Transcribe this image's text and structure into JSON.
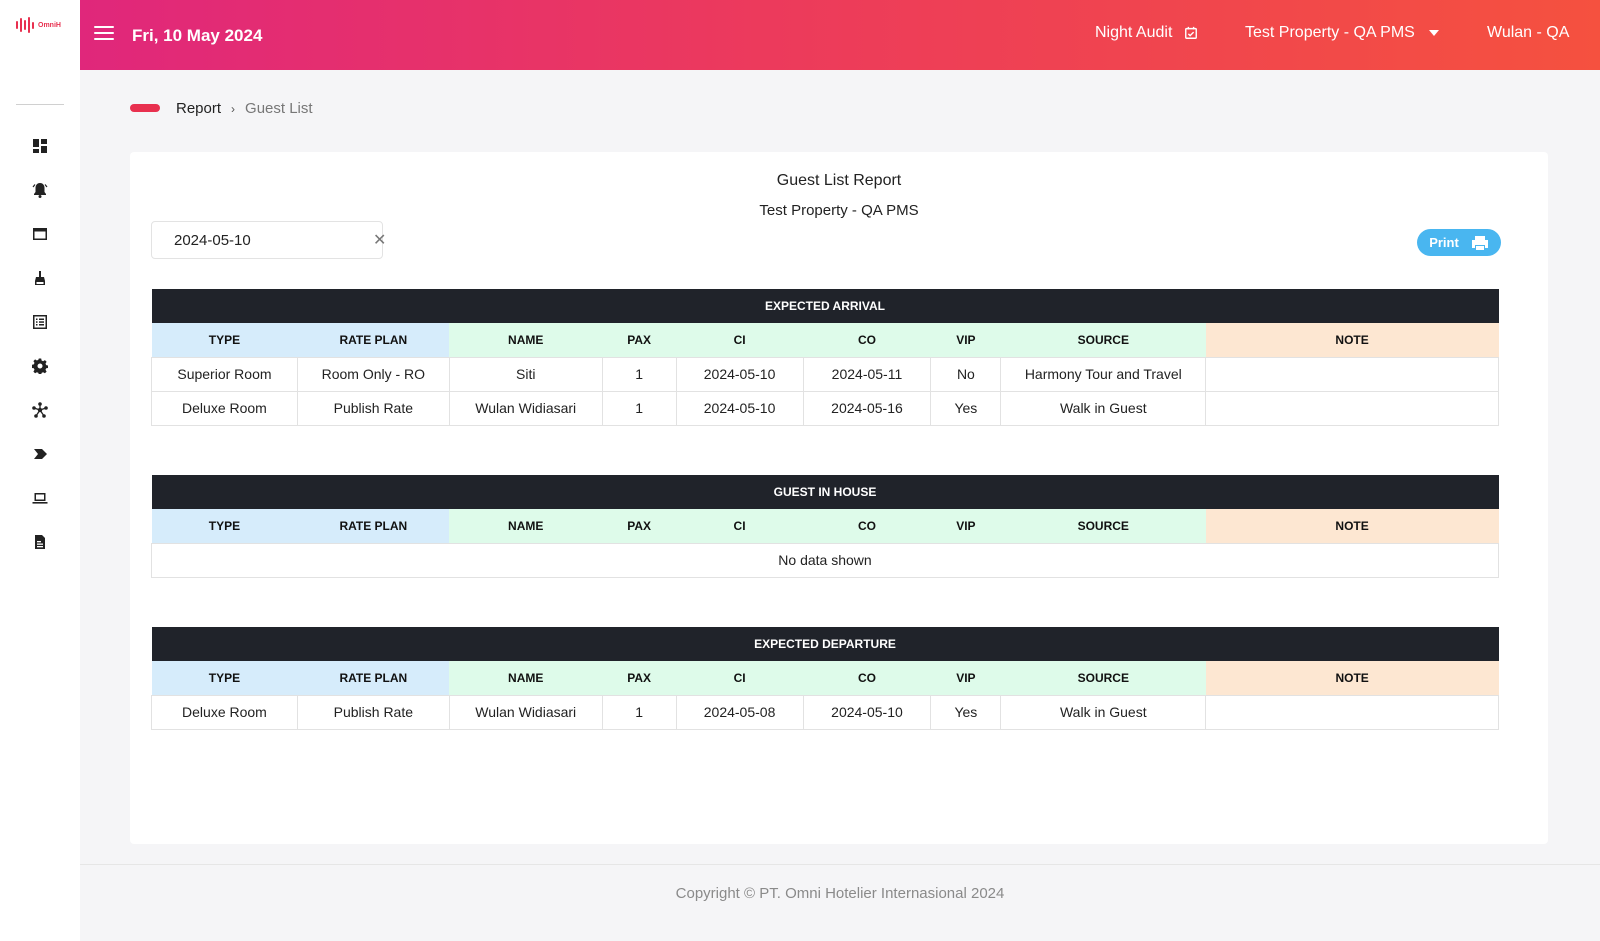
{
  "brand": {
    "logo_text": "OmniH",
    "accent": "#e8304f"
  },
  "header": {
    "date": "Fri, 10 May 2024",
    "night_audit": "Night Audit",
    "property": "Test Property - QA PMS",
    "user": "Wulan - QA"
  },
  "sidebar": {
    "items": [
      {
        "icon": "dashboard-icon"
      },
      {
        "icon": "alarm-bell-icon"
      },
      {
        "icon": "window-icon"
      },
      {
        "icon": "broom-icon"
      },
      {
        "icon": "list-icon"
      },
      {
        "icon": "gear-icon"
      },
      {
        "icon": "network-icon"
      },
      {
        "icon": "chevron-tag-icon"
      },
      {
        "icon": "laptop-icon"
      },
      {
        "icon": "report-doc-icon"
      }
    ]
  },
  "breadcrumb": {
    "parent": "Report",
    "current": "Guest List"
  },
  "report": {
    "title": "Guest List Report",
    "subtitle": "Test Property - QA PMS",
    "date_value": "2024-05-10",
    "print_label": "Print"
  },
  "columns": [
    "TYPE",
    "RATE PLAN",
    "NAME",
    "PAX",
    "CI",
    "CO",
    "VIP",
    "SOURCE",
    "NOTE"
  ],
  "tables": {
    "arrival": {
      "title": "EXPECTED ARRIVAL",
      "rows": [
        [
          "Superior Room",
          "Room Only - RO",
          "Siti",
          "1",
          "2024-05-10",
          "2024-05-11",
          "No",
          "Harmony Tour and Travel",
          ""
        ],
        [
          "Deluxe Room",
          "Publish Rate",
          "Wulan Widiasari",
          "1",
          "2024-05-10",
          "2024-05-16",
          "Yes",
          "Walk in Guest",
          ""
        ]
      ]
    },
    "inhouse": {
      "title": "GUEST IN HOUSE",
      "empty_text": "No data shown"
    },
    "departure": {
      "title": "EXPECTED DEPARTURE",
      "rows": [
        [
          "Deluxe Room",
          "Publish Rate",
          "Wulan Widiasari",
          "1",
          "2024-05-08",
          "2024-05-10",
          "Yes",
          "Walk in Guest",
          ""
        ]
      ]
    }
  },
  "footer": {
    "copyright": "Copyright © PT. Omni Hotelier Internasional 2024"
  }
}
